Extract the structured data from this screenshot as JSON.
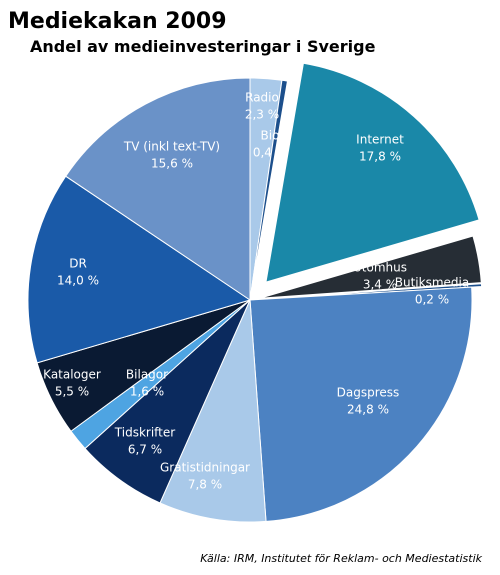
{
  "chart_data": {
    "type": "pie",
    "title": "Mediekakan 2009",
    "subtitle": "Andel av medieinvesteringar i Sverige",
    "source": "Källa: IRM, Institutet för Reklam- och Mediestatistik",
    "categories": [
      "Radio",
      "Bio",
      "Internet",
      "Utomhus",
      "Butiksmedia",
      "Dagspress",
      "Gratistidningar",
      "Tidskrifter",
      "Bilagor",
      "Kataloger",
      "DR",
      "TV (inkl text-TV)"
    ],
    "values": [
      2.3,
      0.4,
      17.8,
      3.4,
      0.2,
      24.8,
      7.8,
      6.7,
      1.6,
      5.5,
      14.0,
      15.6
    ],
    "value_labels": [
      "2,3 %",
      "0,4 %",
      "17,8 %",
      "3,4 %",
      "0,2 %",
      "24,8 %",
      "7,8 %",
      "6,7 %",
      "1,6 %",
      "5,5 %",
      "14,0 %",
      "15,6 %"
    ],
    "colors": [
      "#a9c9e9",
      "#1c4f8c",
      "#1a88a8",
      "#262d35",
      "#1c4f8c",
      "#4c82c2",
      "#a9c9e9",
      "#0b2a5e",
      "#4ea4e2",
      "#0a1a33",
      "#1a5aa8",
      "#6a92c8"
    ]
  }
}
